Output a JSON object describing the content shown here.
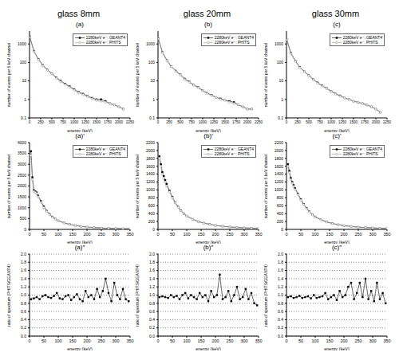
{
  "columns": [
    "glass 8mm",
    "glass 20mm",
    "glass 30mm"
  ],
  "chart_data": [
    {
      "type": "line",
      "title": "(a)",
      "x_label": "energy (keV)",
      "y_label": "number of events per 5 keV channel",
      "log": "y",
      "legend": "upper right",
      "grid": false,
      "x": [
        5,
        100,
        200,
        300,
        400,
        500,
        600,
        700,
        800,
        900,
        1000,
        1100,
        1200,
        1300,
        1400,
        1500,
        1600,
        1700,
        1800,
        1900,
        2000,
        2100
      ],
      "xlim": [
        0,
        2250
      ],
      "xticks": [
        0,
        250,
        500,
        750,
        1000,
        1250,
        1500,
        1750,
        2000,
        2250
      ],
      "ylim": [
        0.1,
        5000
      ],
      "yticks": [
        0.1,
        1,
        10,
        100,
        1000
      ],
      "series": [
        {
          "name": "2280keV e⁻: GEANT4",
          "color": "#000000",
          "marker": "square",
          "values": [
            2500,
            400,
            150,
            70,
            40,
            25,
            15,
            10,
            7,
            5,
            3.5,
            2.5,
            2,
            1.5,
            1.2,
            1,
            1,
            0.8,
            0.6,
            0.5,
            0.4,
            0.3
          ]
        },
        {
          "name": "2280keV e⁻: PHITS",
          "color": "#999999",
          "marker": "circle",
          "values": [
            2300,
            380,
            140,
            65,
            38,
            24,
            14,
            9,
            6.5,
            4.5,
            3.2,
            2.3,
            1.8,
            1.4,
            1.1,
            0.9,
            0.8,
            0.7,
            0.6,
            0.5,
            0.4,
            0.3
          ]
        }
      ]
    },
    {
      "type": "line",
      "title": "(b)",
      "x_label": "energy (keV)",
      "y_label": "number of events per 5 keV channel",
      "log": "y",
      "legend": "upper right",
      "grid": false,
      "x": [
        5,
        100,
        200,
        300,
        400,
        500,
        600,
        700,
        800,
        900,
        1000,
        1100,
        1200,
        1300,
        1400,
        1500,
        1600,
        1700,
        1800,
        1900,
        2000,
        2100
      ],
      "xlim": [
        0,
        2250
      ],
      "xticks": [
        0,
        250,
        500,
        750,
        1000,
        1250,
        1500,
        1750,
        2000,
        2250
      ],
      "ylim": [
        0.1,
        5000
      ],
      "yticks": [
        0.1,
        1,
        10,
        100,
        1000
      ],
      "series": [
        {
          "name": "2280keV e⁻: GEANT4",
          "color": "#000000",
          "marker": "square",
          "values": [
            2000,
            350,
            130,
            60,
            35,
            22,
            13,
            9,
            6,
            4.5,
            3,
            2.2,
            1.7,
            1.3,
            1.1,
            0.9,
            0.8,
            0.7,
            0.5,
            0.4,
            0.3,
            0.3
          ]
        },
        {
          "name": "2280keV e⁻: PHITS",
          "color": "#999999",
          "marker": "circle",
          "values": [
            1900,
            330,
            125,
            58,
            33,
            21,
            12,
            8.5,
            5.8,
            4.2,
            2.9,
            2.1,
            1.6,
            1.3,
            1,
            0.9,
            0.7,
            0.6,
            0.5,
            0.4,
            0.3,
            0.3
          ]
        }
      ]
    },
    {
      "type": "line",
      "title": "(c)",
      "x_label": "energy (keV)",
      "y_label": "number of events per 5 keV channel",
      "log": "y",
      "legend": "upper right",
      "grid": false,
      "x": [
        5,
        100,
        200,
        300,
        400,
        500,
        600,
        700,
        800,
        900,
        1000,
        1100,
        1200,
        1300,
        1400,
        1500,
        1600,
        1700,
        1800,
        1900,
        2000,
        2100
      ],
      "xlim": [
        0,
        2250
      ],
      "xticks": [
        0,
        250,
        500,
        750,
        1000,
        1250,
        1500,
        1750,
        2000,
        2250
      ],
      "ylim": [
        0.1,
        5000
      ],
      "yticks": [
        0.1,
        1,
        10,
        100,
        1000
      ],
      "series": [
        {
          "name": "2280keV e⁻: GEANT4",
          "color": "#000000",
          "marker": "square",
          "values": [
            1700,
            320,
            120,
            55,
            32,
            20,
            12,
            8,
            5.5,
            4,
            2.8,
            2,
            1.6,
            1.2,
            1,
            0.8,
            0.7,
            0.6,
            0.5,
            0.4,
            0.3,
            0.2
          ]
        },
        {
          "name": "2280keV e⁻: PHITS",
          "color": "#999999",
          "marker": "circle",
          "values": [
            1650,
            300,
            115,
            52,
            31,
            19,
            11.5,
            7.5,
            5.2,
            3.8,
            2.7,
            1.9,
            1.5,
            1.2,
            1,
            0.8,
            0.7,
            0.6,
            0.5,
            0.4,
            0.3,
            0.2
          ]
        }
      ]
    },
    {
      "type": "line",
      "title": "(a)′",
      "x_label": "energy (keV)",
      "y_label": "number of events per 5 keV channel",
      "legend": "upper right",
      "grid": false,
      "x": [
        5,
        10,
        15,
        20,
        25,
        30,
        40,
        50,
        60,
        70,
        80,
        90,
        100,
        120,
        140,
        160,
        180,
        200,
        225,
        250,
        275,
        300,
        325,
        350
      ],
      "xlim": [
        0,
        350
      ],
      "xticks": [
        0,
        50,
        100,
        150,
        200,
        250,
        300,
        350
      ],
      "ylim": [
        0,
        4000
      ],
      "yticks": [
        0,
        500,
        1000,
        1500,
        2000,
        2500,
        3000,
        3500,
        4000
      ],
      "series": [
        {
          "name": "2280keV e⁻: GEANT4",
          "color": "#000000",
          "marker": "square",
          "values": [
            3600,
            2400,
            1800,
            1750,
            1700,
            1550,
            1300,
            1050,
            850,
            700,
            580,
            480,
            400,
            300,
            230,
            180,
            140,
            110,
            85,
            65,
            50,
            40,
            32,
            25
          ]
        },
        {
          "name": "2280keV e⁻: PHITS",
          "color": "#999999",
          "marker": "circle",
          "values": [
            3400,
            2300,
            1750,
            1700,
            1650,
            1500,
            1250,
            1000,
            820,
            680,
            560,
            470,
            390,
            290,
            220,
            175,
            135,
            105,
            80,
            62,
            48,
            38,
            30,
            24
          ]
        }
      ]
    },
    {
      "type": "line",
      "title": "(b)′",
      "x_label": "energy (keV)",
      "y_label": "number of events per 5 keV channel",
      "legend": "upper right",
      "grid": false,
      "x": [
        5,
        10,
        15,
        20,
        25,
        30,
        40,
        50,
        60,
        70,
        80,
        90,
        100,
        120,
        140,
        160,
        180,
        200,
        225,
        250,
        275,
        300,
        325,
        350
      ],
      "xlim": [
        0,
        350
      ],
      "xticks": [
        0,
        50,
        100,
        150,
        200,
        250,
        300,
        350
      ],
      "ylim": [
        0,
        2200
      ],
      "yticks": [
        0,
        200,
        400,
        600,
        800,
        1000,
        1200,
        1400,
        1600,
        1800,
        2000,
        2200
      ],
      "series": [
        {
          "name": "2280keV e⁻: GEANT4",
          "color": "#000000",
          "marker": "square",
          "values": [
            1850,
            1650,
            1450,
            1350,
            1250,
            1150,
            980,
            820,
            680,
            570,
            480,
            400,
            340,
            260,
            200,
            160,
            130,
            100,
            80,
            62,
            50,
            40,
            32,
            26
          ]
        },
        {
          "name": "2280keV e⁻: PHITS",
          "color": "#999999",
          "marker": "circle",
          "values": [
            1800,
            1600,
            1400,
            1300,
            1200,
            1100,
            950,
            800,
            670,
            560,
            470,
            395,
            335,
            255,
            195,
            155,
            125,
            98,
            78,
            60,
            48,
            38,
            31,
            25
          ]
        }
      ]
    },
    {
      "type": "line",
      "title": "(c)′",
      "x_label": "energy (keV)",
      "y_label": "number of events per 5 keV channel",
      "legend": "upper right",
      "grid": false,
      "x": [
        5,
        10,
        15,
        20,
        25,
        30,
        40,
        50,
        60,
        70,
        80,
        90,
        100,
        120,
        140,
        160,
        180,
        200,
        225,
        250,
        275,
        300,
        325,
        350
      ],
      "xlim": [
        0,
        350
      ],
      "xticks": [
        0,
        50,
        100,
        150,
        200,
        250,
        300,
        350
      ],
      "ylim": [
        0,
        2200
      ],
      "yticks": [
        0,
        200,
        400,
        600,
        800,
        1000,
        1200,
        1400,
        1600,
        1800,
        2000,
        2200
      ],
      "series": [
        {
          "name": "2280keV e⁻: GEANT4",
          "color": "#000000",
          "marker": "square",
          "values": [
            1650,
            1480,
            1300,
            1200,
            1120,
            1040,
            900,
            760,
            640,
            540,
            450,
            380,
            320,
            245,
            190,
            150,
            120,
            95,
            75,
            58,
            47,
            38,
            30,
            24
          ]
        },
        {
          "name": "2280keV e⁻: PHITS",
          "color": "#999999",
          "marker": "circle",
          "values": [
            1600,
            1440,
            1260,
            1170,
            1090,
            1010,
            880,
            740,
            625,
            525,
            440,
            370,
            312,
            240,
            185,
            147,
            117,
            93,
            73,
            57,
            46,
            37,
            29,
            23
          ]
        }
      ]
    },
    {
      "type": "line",
      "title": "(a)″",
      "x_label": "energy (keV)",
      "y_label": "ratio of spectrum (PHITS/GEANT4)",
      "grid": true,
      "x": [
        5,
        15,
        25,
        35,
        45,
        55,
        65,
        75,
        85,
        95,
        105,
        115,
        125,
        135,
        145,
        155,
        165,
        175,
        185,
        195,
        205,
        215,
        225,
        235,
        245,
        255,
        265,
        275,
        285,
        295,
        305,
        315,
        325,
        335,
        345
      ],
      "xlim": [
        0,
        350
      ],
      "xticks": [
        0,
        50,
        100,
        150,
        200,
        250,
        300,
        350
      ],
      "ylim": [
        0,
        2
      ],
      "yticks": [
        {
          "value": 0,
          "label": "0.0"
        },
        0.2,
        0.4,
        0.6,
        0.8,
        {
          "value": 1,
          "label": "1.0"
        },
        1.2,
        1.4,
        1.6,
        1.8,
        {
          "value": 2,
          "label": "2.0"
        }
      ],
      "series": [
        {
          "color": "#000000",
          "marker": "square",
          "values": [
            0.9,
            0.92,
            0.95,
            0.9,
            0.97,
            1.0,
            0.95,
            0.93,
            0.98,
            1.05,
            0.92,
            0.9,
            0.97,
            1.0,
            0.88,
            0.95,
            1.02,
            0.9,
            0.85,
            1.1,
            0.95,
            1.0,
            0.9,
            1.15,
            0.95,
            1.1,
            1.4,
            1.05,
            0.85,
            1.3,
            1.0,
            0.9,
            1.15,
            0.9,
            0.85
          ]
        }
      ]
    },
    {
      "type": "line",
      "title": "(b)″",
      "x_label": "energy (keV)",
      "y_label": "ratio of spectrum (PHITS/GEANT4)",
      "grid": true,
      "x": [
        5,
        15,
        25,
        35,
        45,
        55,
        65,
        75,
        85,
        95,
        105,
        115,
        125,
        135,
        145,
        155,
        165,
        175,
        185,
        195,
        205,
        215,
        225,
        235,
        245,
        255,
        265,
        275,
        285,
        295,
        305,
        315,
        325,
        335,
        345
      ],
      "xlim": [
        0,
        350
      ],
      "xticks": [
        0,
        50,
        100,
        150,
        200,
        250,
        300,
        350
      ],
      "ylim": [
        0,
        2
      ],
      "yticks": [
        {
          "value": 0,
          "label": "0.0"
        },
        0.2,
        0.4,
        0.6,
        0.8,
        {
          "value": 1,
          "label": "1.0"
        },
        1.2,
        1.4,
        1.6,
        1.8,
        {
          "value": 2,
          "label": "2.0"
        }
      ],
      "series": [
        {
          "color": "#000000",
          "marker": "square",
          "values": [
            0.95,
            0.97,
            0.95,
            0.93,
            1.0,
            0.95,
            0.98,
            0.9,
            1.0,
            1.05,
            0.92,
            1.0,
            0.95,
            0.9,
            1.05,
            0.95,
            1.0,
            0.85,
            1.1,
            0.95,
            1.0,
            1.5,
            0.9,
            0.95,
            1.1,
            0.85,
            1.0,
            1.2,
            0.9,
            0.95,
            1.15,
            0.9,
            1.05,
            0.8,
            0.75
          ]
        }
      ]
    },
    {
      "type": "line",
      "title": "(c)″",
      "x_label": "energy (keV)",
      "y_label": "ratio of spectrum (PHITS/GEANT4)",
      "grid": true,
      "x": [
        5,
        15,
        25,
        35,
        45,
        55,
        65,
        75,
        85,
        95,
        105,
        115,
        125,
        135,
        145,
        155,
        165,
        175,
        185,
        195,
        205,
        215,
        225,
        235,
        245,
        255,
        265,
        275,
        285,
        295,
        305,
        315,
        325,
        335,
        345
      ],
      "xlim": [
        0,
        350
      ],
      "xticks": [
        0,
        50,
        100,
        150,
        200,
        250,
        300,
        350
      ],
      "ylim": [
        0,
        2
      ],
      "yticks": [
        {
          "value": 0,
          "label": "0.0"
        },
        0.2,
        0.4,
        0.6,
        0.8,
        {
          "value": 1,
          "label": "1.0"
        },
        1.2,
        1.4,
        1.6,
        1.8,
        {
          "value": 2,
          "label": "2.0"
        }
      ],
      "series": [
        {
          "color": "#000000",
          "marker": "square",
          "values": [
            0.95,
            0.97,
            0.93,
            0.95,
            0.98,
            0.93,
            0.95,
            0.97,
            0.92,
            1.0,
            0.93,
            0.95,
            0.97,
            1.05,
            0.9,
            0.95,
            1.0,
            0.88,
            1.1,
            0.95,
            1.0,
            1.2,
            1.3,
            0.9,
            1.05,
            1.3,
            0.95,
            1.4,
            0.9,
            1.1,
            0.85,
            1.3,
            0.9,
            1.05,
            0.8
          ]
        }
      ]
    }
  ]
}
